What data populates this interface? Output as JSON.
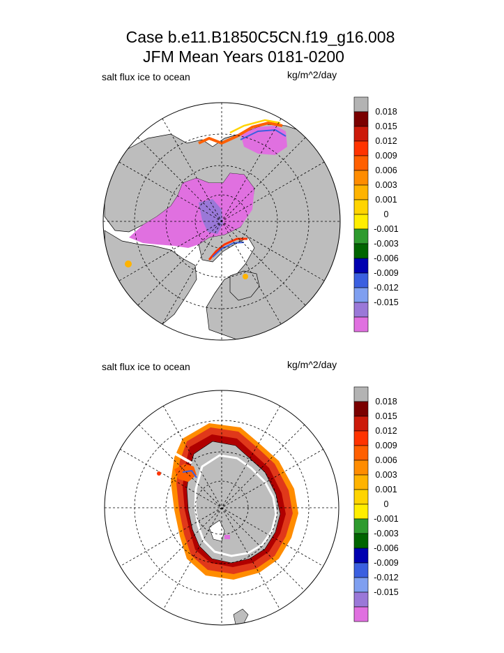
{
  "header": {
    "title_line1": "Case b.e11.B1850C5CN.f19_g16.008",
    "title_line2": "JFM Mean     Years 0181-0200"
  },
  "chart_data": [
    {
      "type": "heatmap",
      "projection": "north-polar-stereographic",
      "variable_label": "salt flux ice to ocean",
      "units": "kg/m^2/day",
      "colorbar": {
        "labels": [
          "0.018",
          "0.015",
          "0.012",
          "0.009",
          "0.006",
          "0.003",
          "0.001",
          "0",
          "-0.001",
          "-0.003",
          "-0.006",
          "-0.009",
          "-0.012",
          "-0.015"
        ],
        "colors": [
          "#b3b3b3",
          "#7a0000",
          "#cc1a0a",
          "#ff3300",
          "#ff5f00",
          "#ff8c00",
          "#ffb300",
          "#ffd400",
          "#ffee00",
          "#2e9b2e",
          "#006400",
          "#0000b0",
          "#3a5fe0",
          "#7f9ff0",
          "#9a78d8",
          "#e070e0"
        ]
      },
      "land_color": "#bdbdbd",
      "dominant_value_color": "#e070e0"
    },
    {
      "type": "heatmap",
      "projection": "south-polar-stereographic",
      "variable_label": "salt flux ice to ocean",
      "units": "kg/m^2/day",
      "colorbar": {
        "labels": [
          "0.018",
          "0.015",
          "0.012",
          "0.009",
          "0.006",
          "0.003",
          "0.001",
          "0",
          "-0.001",
          "-0.003",
          "-0.006",
          "-0.009",
          "-0.012",
          "-0.015"
        ],
        "colors": [
          "#b3b3b3",
          "#7a0000",
          "#cc1a0a",
          "#ff3300",
          "#ff5f00",
          "#ff8c00",
          "#ffb300",
          "#ffd400",
          "#ffee00",
          "#2e9b2e",
          "#006400",
          "#0000b0",
          "#3a5fe0",
          "#7f9ff0",
          "#9a78d8",
          "#e070e0"
        ]
      },
      "land_color": "#bdbdbd",
      "dominant_value_color": "#e0381a"
    }
  ]
}
